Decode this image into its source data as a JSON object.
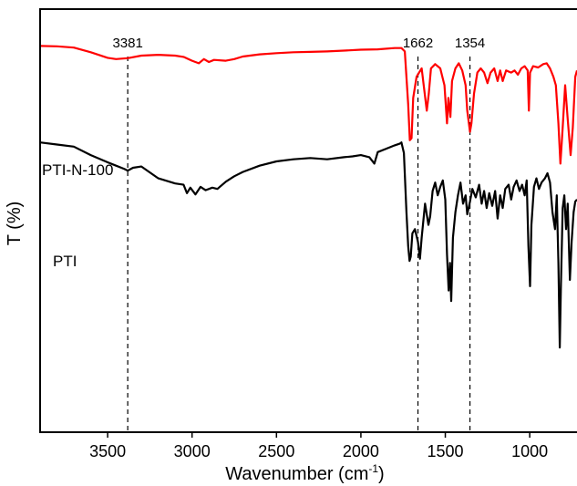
{
  "chart_data": {
    "type": "line",
    "xlabel": "Wavenumber (cm",
    "xlabel_sup": "-1",
    "xlabel_end": ")",
    "ylabel": "T (%)",
    "xlim": [
      3900,
      720
    ],
    "x_reversed": true,
    "ylim": [
      0,
      10
    ],
    "y_ticks_shown": false,
    "x_ticks": [
      3500,
      3000,
      2500,
      2000,
      1500,
      1000
    ],
    "x_tick_labels": [
      "3500",
      "3000",
      "2500",
      "2000",
      "1500",
      "1000"
    ],
    "grid": false,
    "reference_lines": [
      {
        "x": 3381,
        "label": "3381"
      },
      {
        "x": 1662,
        "label": "1662"
      },
      {
        "x": 1354,
        "label": "1354"
      }
    ],
    "series": [
      {
        "name": "PTI-N-100",
        "color": "#ff0000",
        "points": [
          [
            3900,
            9.13
          ],
          [
            3800,
            9.12
          ],
          [
            3700,
            9.09
          ],
          [
            3600,
            8.98
          ],
          [
            3500,
            8.85
          ],
          [
            3450,
            8.82
          ],
          [
            3381,
            8.84
          ],
          [
            3300,
            8.9
          ],
          [
            3200,
            8.92
          ],
          [
            3100,
            8.9
          ],
          [
            3050,
            8.87
          ],
          [
            3000,
            8.78
          ],
          [
            2960,
            8.72
          ],
          [
            2930,
            8.82
          ],
          [
            2900,
            8.75
          ],
          [
            2870,
            8.8
          ],
          [
            2800,
            8.78
          ],
          [
            2750,
            8.82
          ],
          [
            2700,
            8.88
          ],
          [
            2600,
            8.93
          ],
          [
            2500,
            8.96
          ],
          [
            2400,
            8.98
          ],
          [
            2300,
            8.99
          ],
          [
            2200,
            9.0
          ],
          [
            2100,
            9.02
          ],
          [
            2000,
            9.04
          ],
          [
            1900,
            9.05
          ],
          [
            1800,
            9.08
          ],
          [
            1760,
            9.08
          ],
          [
            1740,
            9.0
          ],
          [
            1720,
            7.75
          ],
          [
            1710,
            6.9
          ],
          [
            1700,
            6.95
          ],
          [
            1690,
            7.9
          ],
          [
            1670,
            8.4
          ],
          [
            1640,
            8.6
          ],
          [
            1625,
            8.1
          ],
          [
            1610,
            7.6
          ],
          [
            1598,
            8.0
          ],
          [
            1585,
            8.6
          ],
          [
            1560,
            8.7
          ],
          [
            1530,
            8.6
          ],
          [
            1505,
            8.2
          ],
          [
            1490,
            7.3
          ],
          [
            1482,
            7.9
          ],
          [
            1470,
            7.45
          ],
          [
            1460,
            8.3
          ],
          [
            1440,
            8.6
          ],
          [
            1420,
            8.72
          ],
          [
            1400,
            8.55
          ],
          [
            1380,
            8.2
          ],
          [
            1370,
            7.6
          ],
          [
            1354,
            7.1
          ],
          [
            1345,
            7.3
          ],
          [
            1330,
            8.0
          ],
          [
            1310,
            8.5
          ],
          [
            1290,
            8.6
          ],
          [
            1270,
            8.5
          ],
          [
            1250,
            8.25
          ],
          [
            1232,
            8.5
          ],
          [
            1210,
            8.6
          ],
          [
            1190,
            8.3
          ],
          [
            1175,
            8.55
          ],
          [
            1160,
            8.3
          ],
          [
            1140,
            8.55
          ],
          [
            1110,
            8.5
          ],
          [
            1090,
            8.55
          ],
          [
            1070,
            8.45
          ],
          [
            1050,
            8.6
          ],
          [
            1030,
            8.65
          ],
          [
            1012,
            8.55
          ],
          [
            1005,
            7.6
          ],
          [
            998,
            8.5
          ],
          [
            980,
            8.65
          ],
          [
            950,
            8.62
          ],
          [
            920,
            8.7
          ],
          [
            900,
            8.72
          ],
          [
            880,
            8.6
          ],
          [
            860,
            8.4
          ],
          [
            845,
            8.2
          ],
          [
            830,
            7.3
          ],
          [
            818,
            6.35
          ],
          [
            805,
            7.2
          ],
          [
            790,
            8.2
          ],
          [
            775,
            7.4
          ],
          [
            758,
            6.55
          ],
          [
            745,
            7.2
          ],
          [
            730,
            8.4
          ],
          [
            720,
            8.55
          ]
        ]
      },
      {
        "name": "PTI",
        "color": "#000000",
        "points": [
          [
            3900,
            6.85
          ],
          [
            3800,
            6.8
          ],
          [
            3700,
            6.75
          ],
          [
            3600,
            6.55
          ],
          [
            3500,
            6.38
          ],
          [
            3450,
            6.3
          ],
          [
            3400,
            6.22
          ],
          [
            3381,
            6.18
          ],
          [
            3350,
            6.25
          ],
          [
            3300,
            6.28
          ],
          [
            3200,
            6.0
          ],
          [
            3100,
            5.88
          ],
          [
            3050,
            5.85
          ],
          [
            3030,
            5.65
          ],
          [
            3010,
            5.78
          ],
          [
            2980,
            5.62
          ],
          [
            2950,
            5.8
          ],
          [
            2920,
            5.72
          ],
          [
            2880,
            5.78
          ],
          [
            2850,
            5.75
          ],
          [
            2800,
            5.92
          ],
          [
            2750,
            6.05
          ],
          [
            2700,
            6.15
          ],
          [
            2600,
            6.3
          ],
          [
            2500,
            6.4
          ],
          [
            2400,
            6.45
          ],
          [
            2300,
            6.48
          ],
          [
            2200,
            6.45
          ],
          [
            2100,
            6.5
          ],
          [
            2050,
            6.52
          ],
          [
            2000,
            6.55
          ],
          [
            1950,
            6.5
          ],
          [
            1920,
            6.35
          ],
          [
            1900,
            6.62
          ],
          [
            1850,
            6.7
          ],
          [
            1800,
            6.78
          ],
          [
            1770,
            6.82
          ],
          [
            1760,
            6.85
          ],
          [
            1745,
            6.6
          ],
          [
            1730,
            5.2
          ],
          [
            1720,
            4.4
          ],
          [
            1712,
            4.05
          ],
          [
            1705,
            4.15
          ],
          [
            1695,
            4.7
          ],
          [
            1680,
            4.8
          ],
          [
            1662,
            4.5
          ],
          [
            1650,
            4.1
          ],
          [
            1640,
            4.6
          ],
          [
            1620,
            5.4
          ],
          [
            1600,
            4.9
          ],
          [
            1590,
            5.1
          ],
          [
            1575,
            5.7
          ],
          [
            1560,
            5.9
          ],
          [
            1545,
            5.6
          ],
          [
            1530,
            5.8
          ],
          [
            1515,
            5.95
          ],
          [
            1500,
            5.5
          ],
          [
            1490,
            4.2
          ],
          [
            1480,
            3.35
          ],
          [
            1472,
            4.0
          ],
          [
            1465,
            3.1
          ],
          [
            1455,
            4.6
          ],
          [
            1440,
            5.2
          ],
          [
            1425,
            5.6
          ],
          [
            1410,
            5.9
          ],
          [
            1395,
            5.4
          ],
          [
            1380,
            5.6
          ],
          [
            1370,
            5.15
          ],
          [
            1354,
            5.45
          ],
          [
            1340,
            5.75
          ],
          [
            1320,
            5.55
          ],
          [
            1300,
            5.85
          ],
          [
            1285,
            5.4
          ],
          [
            1270,
            5.7
          ],
          [
            1255,
            5.3
          ],
          [
            1240,
            5.65
          ],
          [
            1222,
            5.35
          ],
          [
            1205,
            5.7
          ],
          [
            1190,
            5.05
          ],
          [
            1175,
            5.6
          ],
          [
            1160,
            5.3
          ],
          [
            1145,
            5.75
          ],
          [
            1125,
            5.85
          ],
          [
            1110,
            5.5
          ],
          [
            1095,
            5.8
          ],
          [
            1078,
            5.95
          ],
          [
            1060,
            5.7
          ],
          [
            1045,
            5.85
          ],
          [
            1030,
            5.6
          ],
          [
            1018,
            5.95
          ],
          [
            1008,
            4.4
          ],
          [
            998,
            3.45
          ],
          [
            990,
            4.9
          ],
          [
            975,
            5.8
          ],
          [
            960,
            6.0
          ],
          [
            945,
            5.75
          ],
          [
            930,
            5.9
          ],
          [
            910,
            6.0
          ],
          [
            895,
            6.12
          ],
          [
            880,
            5.9
          ],
          [
            865,
            5.2
          ],
          [
            850,
            4.8
          ],
          [
            840,
            5.6
          ],
          [
            830,
            4.0
          ],
          [
            822,
            2.0
          ],
          [
            815,
            3.5
          ],
          [
            805,
            5.3
          ],
          [
            795,
            5.6
          ],
          [
            785,
            4.8
          ],
          [
            775,
            5.4
          ],
          [
            762,
            3.6
          ],
          [
            752,
            4.5
          ],
          [
            740,
            5.2
          ],
          [
            730,
            5.45
          ],
          [
            720,
            5.5
          ]
        ]
      }
    ]
  }
}
